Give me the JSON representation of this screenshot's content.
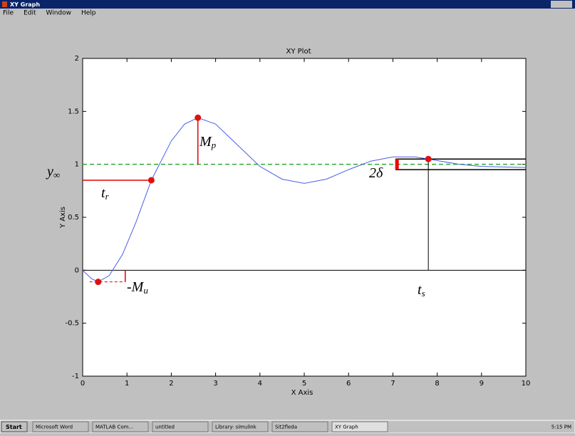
{
  "window": {
    "title": "XY Graph",
    "menu": [
      "File",
      "Edit",
      "Window",
      "Help"
    ]
  },
  "chart_data": {
    "type": "line",
    "title": "XY Plot",
    "x_label": "X Axis",
    "y_label": "Y Axis",
    "x": [
      0,
      0.2,
      0.35,
      0.6,
      0.9,
      1.2,
      1.55,
      2.0,
      2.3,
      2.6,
      3.0,
      3.5,
      4.0,
      4.5,
      5.0,
      5.5,
      6.0,
      6.5,
      7.0,
      7.5,
      7.8,
      8.5,
      9.0,
      10
    ],
    "values": [
      0,
      -0.08,
      -0.11,
      -0.05,
      0.15,
      0.45,
      0.85,
      1.22,
      1.38,
      1.44,
      1.38,
      1.18,
      0.98,
      0.86,
      0.82,
      0.86,
      0.95,
      1.03,
      1.07,
      1.07,
      1.05,
      1.0,
      0.98,
      0.97
    ],
    "color": "#4a5ee8",
    "xlim": [
      0,
      10
    ],
    "xticks": [
      0,
      1,
      2,
      3,
      4,
      5,
      6,
      7,
      8,
      9,
      10
    ],
    "ylim": [
      -1,
      2
    ],
    "yticks": [
      -1,
      -0.5,
      0,
      0.5,
      1,
      1.5,
      2
    ],
    "annotations": {
      "points_x": [
        0.35,
        1.55,
        2.6,
        7.8
      ],
      "points_y": [
        -0.11,
        0.85,
        1.44,
        1.05
      ],
      "steady_state": 1,
      "band": [
        0.95,
        1.05
      ],
      "labels": [
        {
          "symbol": "y",
          "subscript": "∞"
        },
        {
          "symbol": "t",
          "subscript": "r"
        },
        {
          "symbol": "M",
          "subscript": "p"
        },
        {
          "symbol": "-M",
          "subscript": "u"
        },
        {
          "symbol": "2δ",
          "subscript": ""
        },
        {
          "symbol": "t",
          "subscript": "s"
        }
      ]
    }
  },
  "taskbar": {
    "start": "Start",
    "items": [
      "Microsoft Word",
      "MATLAB Com...",
      "untitled",
      "Library: simulink",
      "Sit2fleda",
      "XY Graph"
    ],
    "clock": "5:15 PM"
  }
}
